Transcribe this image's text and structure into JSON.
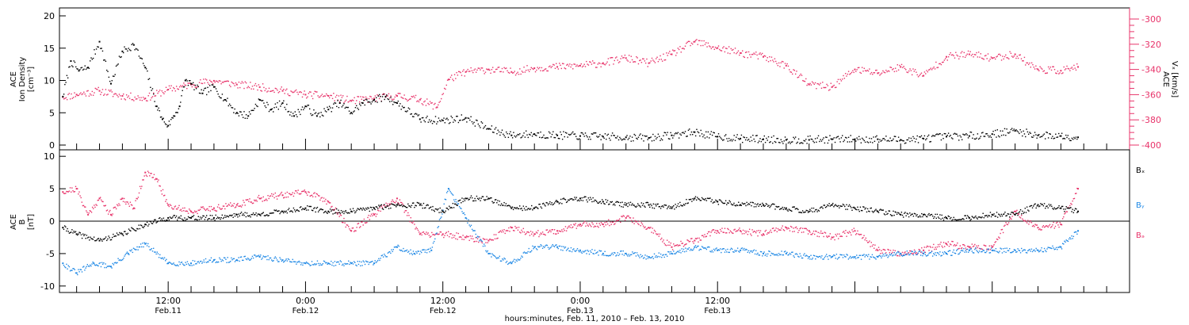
{
  "colors": {
    "black": "#000000",
    "pink": "#e8336a",
    "blue": "#1e88e5"
  },
  "chart_data": [
    {
      "type": "scatter",
      "panel": "top",
      "ylabel_lines": [
        "ACE",
        "Ion Density",
        "[cm⁻³]"
      ],
      "y2label_lines": [
        "ACE",
        "Vₓ [km/s]"
      ],
      "ylim": [
        0,
        20
      ],
      "y2lim": [
        -400,
        -300
      ],
      "yticks": [
        0,
        5,
        10,
        15,
        20
      ],
      "y2ticks": [
        -400,
        -380,
        -360,
        -340,
        -320,
        -300
      ],
      "series": [
        {
          "key": "density",
          "color": "#000000",
          "axis": "left",
          "x": [
            2.8,
            3.5,
            4.2,
            5.0,
            6.0,
            7.0,
            8.0,
            9.0,
            10.0,
            11.0,
            11.5,
            12.0,
            12.5,
            13.0,
            13.5,
            14.0,
            15.0,
            16.0,
            17.0,
            18.0,
            19.0,
            20.0,
            21.0,
            22.0,
            23.0,
            24.0,
            25.0,
            26.0,
            27.0,
            28.0,
            29.0,
            30.0,
            31.0,
            32.0,
            34.0,
            36.0,
            38.0,
            40.0,
            42.0,
            44.0,
            46.0,
            48.0,
            50.0,
            52.0,
            54.0,
            56.0,
            58.0,
            60.0,
            62.0,
            64.0,
            66.0,
            68.0,
            70.0,
            72.0,
            74.0,
            76.0,
            78.0,
            80.0,
            82.0,
            84.0,
            86.0,
            88.0,
            90.0,
            91.5
          ],
          "y": [
            7.5,
            13.0,
            11.5,
            12.0,
            16.0,
            9.5,
            14.5,
            15.5,
            12.0,
            6.0,
            4.0,
            3.0,
            4.5,
            6.0,
            10.0,
            9.5,
            8.0,
            9.0,
            7.0,
            5.0,
            4.5,
            7.0,
            5.5,
            6.5,
            4.5,
            6.0,
            4.5,
            5.5,
            6.5,
            5.0,
            6.5,
            7.0,
            7.5,
            6.5,
            4.0,
            3.8,
            4.2,
            2.5,
            1.5,
            1.7,
            1.5,
            1.4,
            1.3,
            1.2,
            1.1,
            1.5,
            2.0,
            1.3,
            1.0,
            0.9,
            0.8,
            0.8,
            0.9,
            0.9,
            0.9,
            0.8,
            1.0,
            1.3,
            1.4,
            1.7,
            2.2,
            1.5,
            1.4,
            1.2
          ]
        },
        {
          "key": "vx",
          "color": "#e8336a",
          "axis": "right",
          "x": [
            2.8,
            4.0,
            6.0,
            8.0,
            10.0,
            12.0,
            14.0,
            16.0,
            18.0,
            20.0,
            22.0,
            24.0,
            26.0,
            28.0,
            30.0,
            32.0,
            34.0,
            35.5,
            36.5,
            38.0,
            40.0,
            42.0,
            44.0,
            46.0,
            48.0,
            50.0,
            52.0,
            54.0,
            56.0,
            58.0,
            60.0,
            62.0,
            64.0,
            66.0,
            68.0,
            70.0,
            72.0,
            74.0,
            76.0,
            78.0,
            80.0,
            82.0,
            84.0,
            86.0,
            88.0,
            90.0,
            91.5
          ],
          "y": [
            -362,
            -360,
            -357,
            -361,
            -363,
            -356,
            -352,
            -349,
            -352,
            -354,
            -357,
            -360,
            -361,
            -365,
            -363,
            -361,
            -364,
            -370,
            -348,
            -342,
            -340,
            -342,
            -339,
            -338,
            -337,
            -335,
            -331,
            -335,
            -328,
            -318,
            -323,
            -327,
            -330,
            -337,
            -352,
            -354,
            -340,
            -343,
            -338,
            -345,
            -330,
            -328,
            -331,
            -328,
            -340,
            -341,
            -338
          ]
        }
      ]
    },
    {
      "type": "scatter",
      "panel": "bottom",
      "ylabel_lines": [
        "ACE",
        "B",
        "[nT]"
      ],
      "ylim": [
        -11,
        11
      ],
      "yticks": [
        -10,
        -5,
        0,
        5,
        10
      ],
      "legend": [
        "Bₓ",
        "Bᵧ",
        "Bₔ"
      ],
      "series": [
        {
          "key": "bx",
          "name": "Bₓ",
          "color": "#000000",
          "x": [
            2.8,
            4.0,
            6.0,
            8.0,
            10.0,
            12.0,
            14.0,
            16.0,
            18.0,
            20.0,
            22.0,
            24.0,
            26.0,
            28.0,
            30.0,
            32.0,
            34.0,
            36.0,
            38.0,
            40.0,
            42.0,
            44.0,
            46.0,
            48.0,
            50.0,
            52.0,
            54.0,
            56.0,
            58.0,
            60.0,
            62.0,
            64.0,
            66.0,
            68.0,
            70.0,
            72.0,
            74.0,
            76.0,
            78.0,
            80.0,
            82.0,
            84.0,
            86.0,
            88.0,
            90.0,
            91.5
          ],
          "y": [
            -1.0,
            -2.0,
            -3.0,
            -2.0,
            -0.5,
            0.5,
            0.5,
            0.5,
            1.0,
            1.0,
            1.5,
            2.0,
            1.5,
            1.5,
            2.0,
            2.5,
            2.5,
            1.5,
            3.5,
            3.5,
            2.0,
            2.0,
            3.0,
            3.5,
            3.0,
            2.5,
            2.5,
            2.0,
            3.5,
            3.0,
            2.5,
            2.5,
            2.0,
            1.5,
            2.5,
            2.0,
            1.5,
            1.0,
            1.0,
            0.5,
            0.5,
            1.0,
            1.0,
            2.5,
            2.0,
            1.5
          ]
        },
        {
          "key": "by",
          "name": "Bᵧ",
          "color": "#1e88e5",
          "x": [
            2.8,
            4.0,
            5.5,
            7.0,
            8.5,
            10.0,
            12.0,
            14.0,
            16.0,
            18.0,
            20.0,
            22.0,
            24.0,
            26.0,
            28.0,
            30.0,
            32.0,
            33.5,
            35.0,
            36.5,
            38.0,
            40.0,
            42.0,
            44.0,
            46.0,
            48.0,
            50.0,
            52.0,
            54.0,
            56.0,
            58.0,
            60.0,
            62.0,
            64.0,
            66.0,
            68.0,
            70.0,
            72.0,
            74.0,
            76.0,
            78.0,
            80.0,
            82.0,
            84.0,
            86.0,
            88.0,
            90.0,
            91.5
          ],
          "y": [
            -6.5,
            -8.0,
            -6.5,
            -7.0,
            -5.0,
            -3.5,
            -6.5,
            -6.5,
            -6.0,
            -6.0,
            -5.5,
            -6.0,
            -6.5,
            -6.5,
            -6.5,
            -6.5,
            -4.0,
            -5.0,
            -4.5,
            5.0,
            0.5,
            -5.0,
            -6.5,
            -4.0,
            -4.0,
            -4.5,
            -5.0,
            -5.0,
            -5.5,
            -5.0,
            -4.0,
            -4.5,
            -4.5,
            -5.0,
            -5.0,
            -5.5,
            -5.5,
            -5.5,
            -5.5,
            -5.0,
            -5.0,
            -5.0,
            -4.5,
            -4.5,
            -4.5,
            -4.5,
            -4.0,
            -1.5
          ]
        },
        {
          "key": "bz",
          "name": "Bₔ",
          "color": "#e8336a",
          "x": [
            2.8,
            4.0,
            5.0,
            6.0,
            7.0,
            8.0,
            9.0,
            10.0,
            11.0,
            12.0,
            14.0,
            16.0,
            18.0,
            20.0,
            22.0,
            24.0,
            26.0,
            28.0,
            30.0,
            32.0,
            34.0,
            36.0,
            38.0,
            40.0,
            42.0,
            44.0,
            46.0,
            48.0,
            50.0,
            52.0,
            54.0,
            56.0,
            58.0,
            60.0,
            62.0,
            64.0,
            66.0,
            68.0,
            70.0,
            72.0,
            74.0,
            76.0,
            78.0,
            80.0,
            82.0,
            84.0,
            86.0,
            88.0,
            90.0,
            91.5
          ],
          "y": [
            4.5,
            5.0,
            1.0,
            3.5,
            1.0,
            3.5,
            2.0,
            7.5,
            6.5,
            2.5,
            1.5,
            2.0,
            2.5,
            3.5,
            4.0,
            4.5,
            3.0,
            -1.5,
            1.0,
            3.5,
            -2.0,
            -2.0,
            -2.5,
            -3.0,
            -1.0,
            -2.0,
            -1.5,
            -0.5,
            -0.5,
            0.5,
            -1.0,
            -4.0,
            -3.0,
            -1.5,
            -1.5,
            -2.0,
            -1.0,
            -1.5,
            -2.5,
            -1.5,
            -4.5,
            -5.0,
            -4.5,
            -3.5,
            -4.0,
            -4.0,
            1.5,
            -1.0,
            -0.5,
            5.0
          ]
        }
      ]
    }
  ],
  "x_axis": {
    "label": "hours:minutes, Feb. 11, 2010 – Feb. 13, 2010",
    "ticks": [
      {
        "x": 12,
        "time": "12:00",
        "date": "Feb.11"
      },
      {
        "x": 24,
        "time": "0:00",
        "date": "Feb.12"
      },
      {
        "x": 36,
        "time": "12:00",
        "date": "Feb.12"
      },
      {
        "x": 48,
        "time": "0:00",
        "date": "Feb.13"
      },
      {
        "x": 60,
        "time": "12:00",
        "date": "Feb.13"
      }
    ],
    "xlim": [
      2.5,
      96.0
    ]
  }
}
